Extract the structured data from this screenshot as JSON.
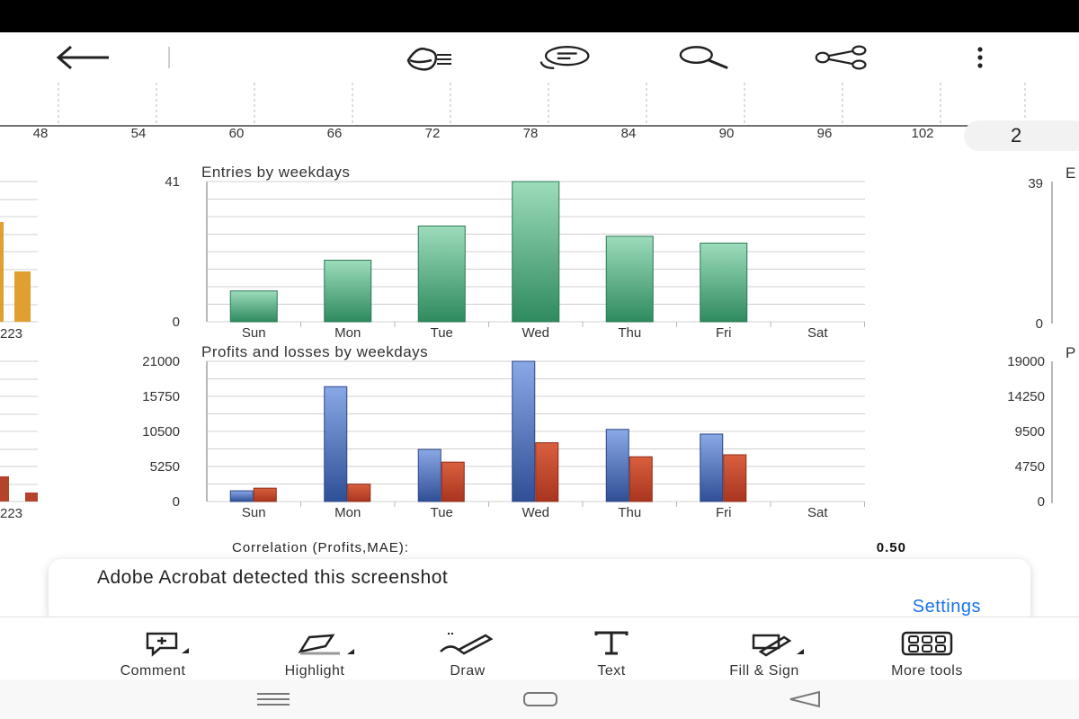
{
  "topbar": {
    "icons": [
      "back-arrow-icon",
      "reading-mode-icon",
      "comment-list-icon",
      "search-icon",
      "share-icon",
      "more-vertical-icon"
    ]
  },
  "page_indicator": "2",
  "top_axis": {
    "ticks": [
      "48",
      "54",
      "60",
      "66",
      "72",
      "78",
      "84",
      "90",
      "96",
      "102"
    ]
  },
  "left_partial": {
    "tick_label": "223"
  },
  "right_partial": {
    "top_chart": {
      "max": "39",
      "min": "0",
      "title_fragment": "E"
    },
    "bottom_chart": {
      "ticks": [
        "19000",
        "14250",
        "9500",
        "4750",
        "0"
      ],
      "title_fragment": "P"
    }
  },
  "chart_data": [
    {
      "type": "bar",
      "title": "Entries by weekdays",
      "categories": [
        "Sun",
        "Mon",
        "Tue",
        "Wed",
        "Thu",
        "Fri",
        "Sat"
      ],
      "values": [
        9,
        18,
        28,
        41,
        25,
        23,
        0
      ],
      "ylim": [
        0,
        41
      ],
      "ytick_labels": [
        "41",
        "0"
      ],
      "color": "#3a9b6e"
    },
    {
      "type": "bar",
      "title": "Profits and losses by weekdays",
      "categories": [
        "Sun",
        "Mon",
        "Tue",
        "Wed",
        "Thu",
        "Fri",
        "Sat"
      ],
      "series": [
        {
          "values": [
            1600,
            17200,
            7800,
            21000,
            10800,
            10100,
            0
          ],
          "color": "#3a5ea8"
        },
        {
          "values": [
            2000,
            2600,
            5900,
            8800,
            6700,
            7000,
            0
          ],
          "color": "#b5432c"
        }
      ],
      "ylim": [
        0,
        21000
      ],
      "ytick_labels": [
        "21000",
        "15750",
        "10500",
        "5250",
        "0"
      ]
    }
  ],
  "correlation": {
    "label": "Correlation (Profits,MAE):",
    "value": "0.50"
  },
  "toast": {
    "message": "Adobe Acrobat detected this screenshot",
    "action": "Settings"
  },
  "tools": [
    {
      "label": "Comment",
      "icon": "comment-icon"
    },
    {
      "label": "Highlight",
      "icon": "highlight-icon"
    },
    {
      "label": "Draw",
      "icon": "draw-icon"
    },
    {
      "label": "Text",
      "icon": "text-icon"
    },
    {
      "label": "Fill & Sign",
      "icon": "fill-sign-icon"
    },
    {
      "label": "More tools",
      "icon": "more-tools-icon"
    }
  ],
  "navbar": {
    "icons": [
      "recent-apps-icon",
      "home-icon",
      "back-icon"
    ]
  }
}
